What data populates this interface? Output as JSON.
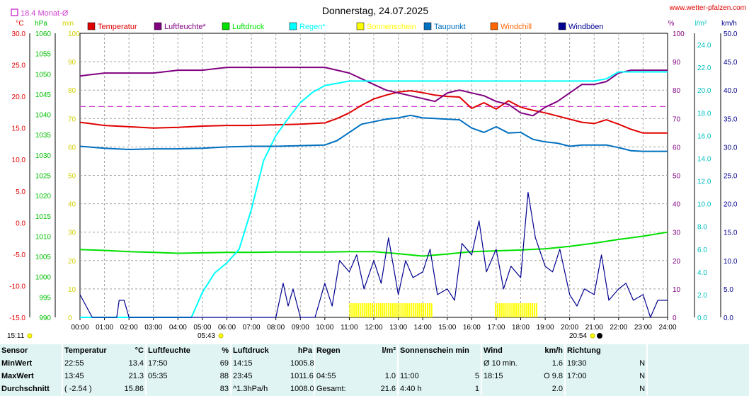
{
  "header": {
    "title": "Donnerstag, 24.07.2025",
    "website": "www.wetter-pfalzen.com",
    "month_avg_label": "18.4 Monat-Ø"
  },
  "axis_units": {
    "left_temp": "°C",
    "left_hpa": "hPa",
    "left_min": "min",
    "right_pct": "%",
    "right_lm2": "l/m²",
    "right_kmh": "km/h"
  },
  "legend": [
    {
      "label": "Temperatur",
      "color": "#e00000"
    },
    {
      "label": "Luftfeuchte*",
      "color": "#800080"
    },
    {
      "label": "Luftdruck",
      "color": "#00e000"
    },
    {
      "label": "Regen*",
      "color": "#00ffff"
    },
    {
      "label": "Sonnenschein",
      "color": "#ffff00"
    },
    {
      "label": "Taupunkt",
      "color": "#0070c0"
    },
    {
      "label": "Windchill",
      "color": "#ff6600"
    },
    {
      "label": "Windböen",
      "color": "#000090"
    }
  ],
  "sun": {
    "rise_before": "15:11",
    "sunrise": "05:43",
    "sunset": "20:54"
  },
  "chart_data": {
    "type": "line",
    "x_unit": "hours",
    "x_ticks": [
      "00:00",
      "01:00",
      "02:00",
      "03:00",
      "04:00",
      "05:00",
      "06:00",
      "07:00",
      "08:00",
      "09:00",
      "10:00",
      "11:00",
      "12:00",
      "13:00",
      "14:00",
      "15:00",
      "16:00",
      "17:00",
      "18:00",
      "19:00",
      "20:00",
      "21:00",
      "22:00",
      "23:00",
      "24:00"
    ],
    "xlim": [
      0,
      24
    ],
    "axes": {
      "temp": {
        "unit": "°C",
        "ylim": [
          -15,
          30
        ],
        "ticks": [
          "30.0",
          "25.0",
          "20.0",
          "15.0",
          "10.0",
          "5.0",
          "0.0",
          "-5.0",
          "-10.0",
          "-15.0"
        ]
      },
      "pressure": {
        "unit": "hPa",
        "ylim": [
          990,
          1060
        ],
        "ticks": [
          "1060",
          "1055",
          "1050",
          "1045",
          "1040",
          "1035",
          "1030",
          "1025",
          "1020",
          "1015",
          "1010",
          "1005",
          "1000",
          "995",
          "990"
        ]
      },
      "sunshine_min": {
        "unit": "min",
        "ylim": [
          0,
          100
        ],
        "ticks": [
          "100",
          "90",
          "80",
          "70",
          "60",
          "50",
          "40",
          "30",
          "20",
          "10",
          "0"
        ]
      },
      "humidity": {
        "unit": "%",
        "ylim": [
          0,
          100
        ],
        "ticks": [
          "100",
          "90",
          "80",
          "70",
          "60",
          "50",
          "40",
          "30",
          "20",
          "10",
          "0"
        ]
      },
      "rain": {
        "unit": "l/m²",
        "ylim": [
          0,
          25
        ],
        "ticks": [
          "24.0",
          "22.0",
          "20.0",
          "18.0",
          "16.0",
          "14.0",
          "12.0",
          "10.0",
          "8.0",
          "6.0",
          "4.0",
          "2.0",
          "0.0"
        ]
      },
      "wind": {
        "unit": "km/h",
        "ylim": [
          0,
          50
        ],
        "ticks": [
          "50.0",
          "45.0",
          "40.0",
          "35.0",
          "30.0",
          "25.0",
          "20.0",
          "15.0",
          "10.0",
          "5.0",
          "0.0"
        ]
      }
    },
    "month_avg_temp": 18.4,
    "series": [
      {
        "name": "Temperatur",
        "axis": "temp",
        "color": "#e00000",
        "x": [
          0,
          1,
          2,
          3,
          4,
          5,
          6,
          7,
          8,
          9,
          10,
          10.5,
          11,
          11.5,
          12,
          12.5,
          13,
          13.5,
          14,
          14.5,
          15,
          15.5,
          16,
          16.5,
          17,
          17.5,
          18,
          18.5,
          19,
          19.5,
          20,
          20.5,
          21,
          21.5,
          22,
          22.5,
          23,
          24
        ],
        "y": [
          15.9,
          15.4,
          15.2,
          15.0,
          15.1,
          15.3,
          15.4,
          15.4,
          15.5,
          15.6,
          15.8,
          16.5,
          17.4,
          18.6,
          19.6,
          20.2,
          20.7,
          20.9,
          20.6,
          20.2,
          20.0,
          19.9,
          18.1,
          19.0,
          18.0,
          19.3,
          18.3,
          17.8,
          17.4,
          16.9,
          16.4,
          15.9,
          15.7,
          16.3,
          15.6,
          14.8,
          14.2,
          14.2
        ]
      },
      {
        "name": "Luftfeuchte*",
        "axis": "humidity",
        "color": "#800080",
        "x": [
          0,
          1,
          2,
          3,
          4,
          5,
          6,
          7,
          8,
          9,
          10,
          10.5,
          11,
          11.5,
          12,
          12.5,
          13,
          13.5,
          14,
          14.5,
          15,
          15.5,
          16,
          16.5,
          17,
          17.5,
          18,
          18.5,
          19,
          19.5,
          20,
          20.5,
          21,
          21.5,
          22,
          22.5,
          23,
          24
        ],
        "y": [
          85,
          86,
          86,
          86,
          87,
          87,
          88,
          88,
          88,
          88,
          88,
          87,
          86,
          84,
          82,
          80,
          79,
          78,
          77,
          76,
          79,
          80,
          79,
          78,
          76,
          75,
          72,
          71,
          74,
          76,
          79,
          82,
          82,
          83,
          86,
          87,
          87,
          87
        ]
      },
      {
        "name": "Luftdruck",
        "axis": "pressure",
        "color": "#00e000",
        "x": [
          0,
          1,
          2,
          3,
          4,
          5,
          6,
          7,
          8,
          9,
          10,
          11,
          12,
          13,
          14,
          15,
          16,
          17,
          18,
          19,
          20,
          21,
          22,
          23,
          24
        ],
        "y": [
          1006.7,
          1006.5,
          1006.2,
          1006.0,
          1005.8,
          1005.9,
          1006.0,
          1006.0,
          1006.1,
          1006.1,
          1006.1,
          1006.2,
          1006.2,
          1005.7,
          1005.1,
          1005.6,
          1006.2,
          1006.4,
          1006.6,
          1006.9,
          1007.5,
          1008.3,
          1009.2,
          1010.0,
          1011.0
        ]
      },
      {
        "name": "Regen*",
        "axis": "rain",
        "color": "#00ffff",
        "x": [
          0,
          4.55,
          5,
          5.5,
          6,
          6.5,
          7,
          7.5,
          8,
          8.5,
          9,
          9.5,
          10,
          10.5,
          11,
          11.5,
          12,
          13,
          14,
          15,
          16,
          17,
          18,
          19,
          20,
          20.5,
          21,
          21.5,
          22,
          22.5,
          23,
          24
        ],
        "y": [
          0,
          0,
          2.2,
          3.9,
          4.8,
          6.0,
          9.5,
          13.8,
          16.0,
          17.5,
          18.9,
          19.8,
          20.4,
          20.6,
          20.8,
          20.8,
          20.8,
          20.8,
          20.8,
          20.8,
          20.8,
          20.8,
          20.8,
          20.8,
          20.8,
          20.8,
          20.8,
          21.0,
          21.6,
          21.6,
          21.6,
          21.6
        ]
      },
      {
        "name": "Taupunkt",
        "axis": "temp",
        "color": "#0070c0",
        "x": [
          0,
          1,
          2,
          3,
          4,
          5,
          6,
          7,
          8,
          9,
          10,
          10.5,
          11,
          11.5,
          12,
          12.5,
          13,
          13.5,
          14,
          14.5,
          15,
          15.5,
          16,
          16.5,
          17,
          17.5,
          18,
          18.5,
          19,
          19.5,
          20,
          20.5,
          21,
          21.5,
          22,
          22.5,
          23,
          24
        ],
        "y": [
          12.1,
          11.8,
          11.6,
          11.7,
          11.7,
          11.8,
          12.0,
          12.1,
          12.1,
          12.2,
          12.3,
          13.0,
          14.3,
          15.6,
          16.0,
          16.4,
          16.6,
          17.0,
          16.6,
          16.5,
          16.4,
          16.3,
          15.0,
          14.3,
          15.2,
          14.2,
          14.3,
          13.2,
          12.8,
          12.6,
          12.1,
          12.3,
          12.3,
          12.3,
          11.9,
          11.4,
          11.3,
          11.3
        ]
      },
      {
        "name": "Windböen",
        "axis": "wind",
        "color": "#000090",
        "x": [
          0,
          0.5,
          1,
          1.5,
          1.6,
          1.8,
          2,
          3,
          4,
          5,
          6,
          7,
          8,
          8.3,
          8.5,
          8.7,
          9,
          9.3,
          9.6,
          10,
          10.3,
          10.6,
          11,
          11.3,
          11.6,
          12,
          12.3,
          12.6,
          13,
          13.3,
          13.6,
          14,
          14.3,
          14.6,
          15,
          15.3,
          15.6,
          16,
          16.3,
          16.6,
          17,
          17.3,
          17.6,
          18,
          18.3,
          18.6,
          19,
          19.3,
          19.6,
          20,
          20.3,
          20.6,
          21,
          21.3,
          21.6,
          22,
          22.3,
          22.6,
          23,
          23.3,
          23.6,
          24
        ],
        "y": [
          4,
          0,
          0,
          0,
          3,
          3,
          0,
          0,
          0,
          0,
          0,
          0,
          0,
          6,
          2,
          5,
          0,
          0,
          0,
          6,
          2,
          10,
          8,
          11,
          5,
          10,
          6,
          14,
          4,
          10,
          7,
          8,
          12,
          4,
          5,
          3,
          13,
          11,
          17,
          8,
          12,
          5,
          9,
          7,
          22,
          14,
          9,
          8,
          12,
          4,
          2,
          5,
          4,
          11,
          3,
          5,
          6,
          3,
          4,
          0,
          3,
          3
        ]
      }
    ],
    "sunshine_bars": [
      {
        "from": 11.0,
        "to": 14.4
      },
      {
        "from": 16.95,
        "to": 18.65
      }
    ],
    "grid": true
  },
  "stats": {
    "headers": {
      "sensor": "Sensor",
      "temperature": "Temperatur",
      "temperature_unit": "°C",
      "humidity": "Luftfeuchte",
      "humidity_unit": "%",
      "pressure": "Luftdruck",
      "pressure_unit": "hPa",
      "rain": "Regen",
      "rain_unit": "l/m²",
      "sunshine": "Sonnenschein min",
      "wind": "Wind",
      "wind_unit": "km/h",
      "direction": "Richtung"
    },
    "rows": [
      {
        "label": "MinWert",
        "temp_time": "22:55",
        "temp_val": "13.4",
        "hum_time": "17:50",
        "hum_val": "69",
        "press_time": "14:15",
        "press_val": "1005.8",
        "rain_time": "",
        "rain_val": "",
        "sun_time": "",
        "sun_val": "",
        "wind_label": "Ø 10 min.",
        "wind_val": "1.6",
        "dir_time": "19:30",
        "dir_val": "N"
      },
      {
        "label": "MaxWert",
        "temp_time": "13:45",
        "temp_val": "21.3",
        "hum_time": "05:35",
        "hum_val": "88",
        "press_time": "23:45",
        "press_val": "1011.6",
        "rain_time": "04:55",
        "rain_val": "1.0",
        "sun_time": "11:00",
        "sun_val": "5",
        "wind_label": "18:15",
        "wind_val": "O 9.8",
        "dir_time": "17:00",
        "dir_val": "N"
      },
      {
        "label": "Durchschnitt",
        "temp_time": "( -2.54 )",
        "temp_val": "15.86",
        "hum_time": "",
        "hum_val": "83",
        "press_time": "^1.3hPa/h",
        "press_val": "1008.0",
        "rain_time": "Gesamt:",
        "rain_val": "21.6",
        "sun_time": "4:40 h",
        "sun_val": "1",
        "wind_label": "",
        "wind_val": "2.0",
        "dir_time": "",
        "dir_val": "N"
      }
    ]
  }
}
